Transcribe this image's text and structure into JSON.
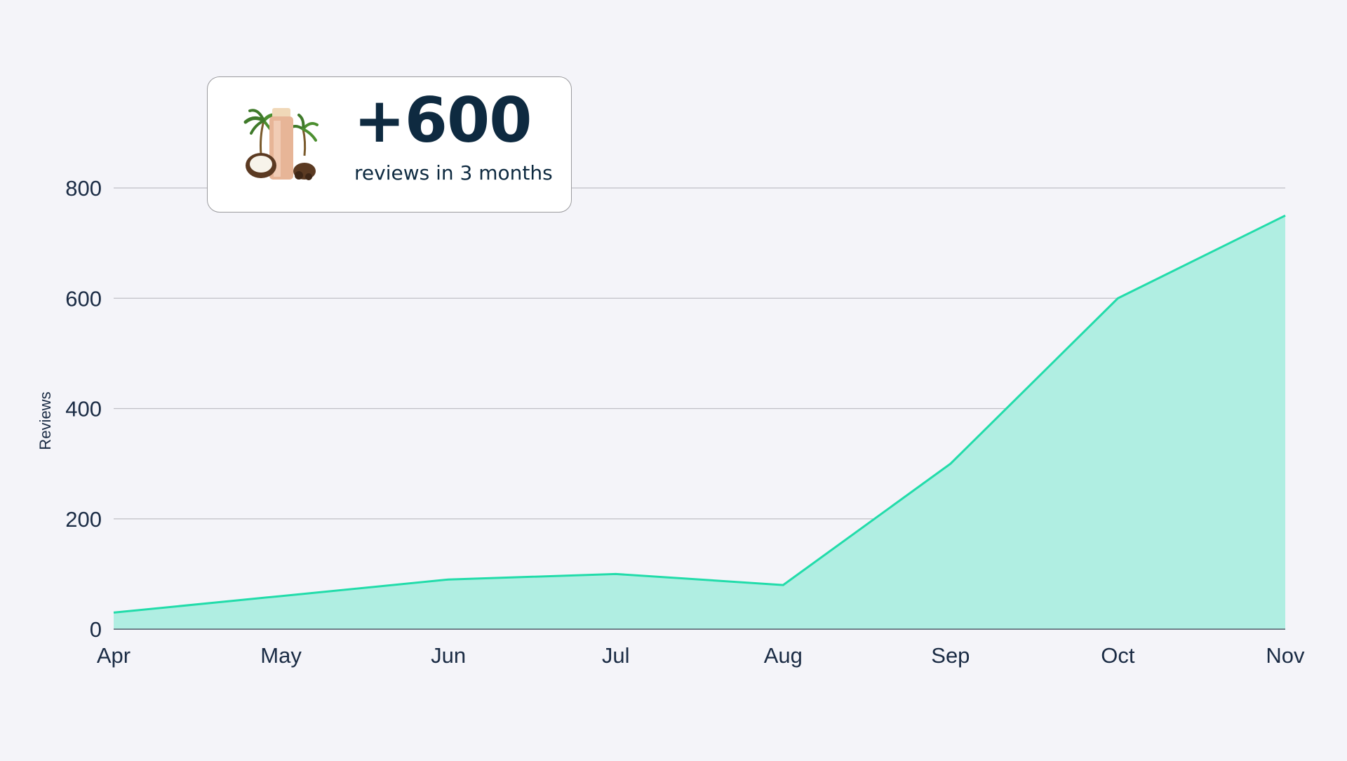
{
  "colors": {
    "background": "#f4f4f9",
    "area_fill": "#b0eee2",
    "line": "#22dcaa",
    "grid": "#bfbfc6",
    "text": "#1a2b44",
    "callout_text": "#0e2a40"
  },
  "callout": {
    "value": "+600",
    "caption": "reviews in 3 months",
    "image_icon": "coconut-product-image"
  },
  "chart_data": {
    "type": "area",
    "categories": [
      "Apr",
      "May",
      "Jun",
      "Jul",
      "Aug",
      "Sep",
      "Oct",
      "Nov"
    ],
    "series": [
      {
        "values": [
          30,
          60,
          90,
          100,
          80,
          300,
          600,
          750
        ]
      }
    ],
    "ylabel": "Reviews",
    "xlabel": "",
    "ylim": [
      0,
      800
    ],
    "yticks": [
      0,
      200,
      400,
      600,
      800
    ],
    "grid": true,
    "legend": "none"
  }
}
